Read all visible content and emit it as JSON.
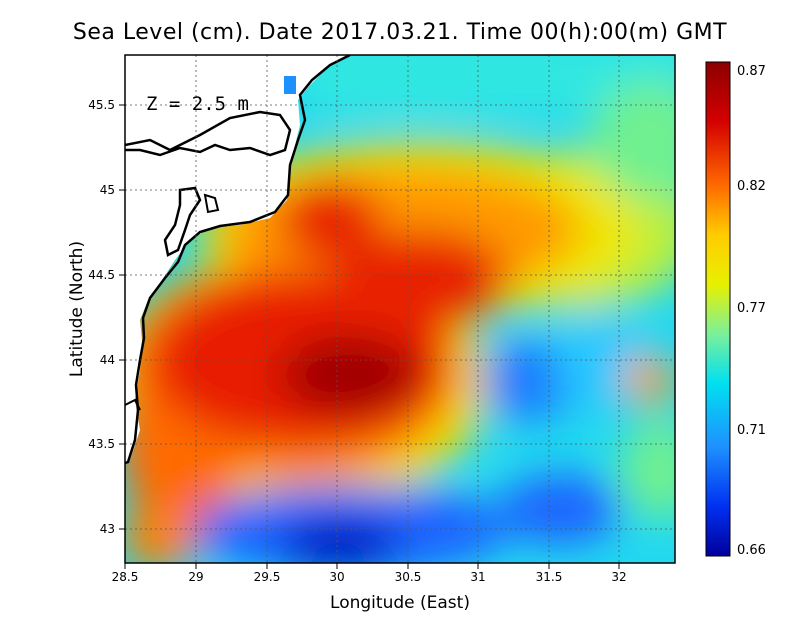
{
  "title": "Sea Level (cm). Date 2017.03.21. Time 00(h):00(m) GMT",
  "annotation": "Z = 2.5 m",
  "xlabel": "Longitude (East)",
  "ylabel": "Latitude (North)",
  "x_ticks": [
    "28.5",
    "29",
    "29.5",
    "30",
    "30.5",
    "31",
    "31.5",
    "32"
  ],
  "y_ticks": [
    "43",
    "43.5",
    "44",
    "44.5",
    "45",
    "45.5"
  ],
  "colorbar": {
    "ticks": [
      "0.87",
      "0.82",
      "0.77",
      "0.71",
      "0.66"
    ],
    "colors": [
      "#8b0000",
      "#e81c00",
      "#ff8c00",
      "#f5e600",
      "#8cf080",
      "#00e6f0",
      "#1ea0ff",
      "#0050ff",
      "#00009c"
    ]
  },
  "chart_data": {
    "type": "heatmap",
    "title": "Sea Level (cm). Date 2017.03.21. Time 00(h):00(m) GMT",
    "xlabel": "Longitude (East)",
    "ylabel": "Latitude (North)",
    "xlim": [
      28.5,
      32.4
    ],
    "ylim": [
      42.8,
      45.8
    ],
    "value_range": [
      0.66,
      0.87
    ],
    "colorbar_ticks": [
      0.87,
      0.82,
      0.77,
      0.71,
      0.66
    ],
    "grid": true,
    "annotation": "Z = 2.5 m"
  }
}
